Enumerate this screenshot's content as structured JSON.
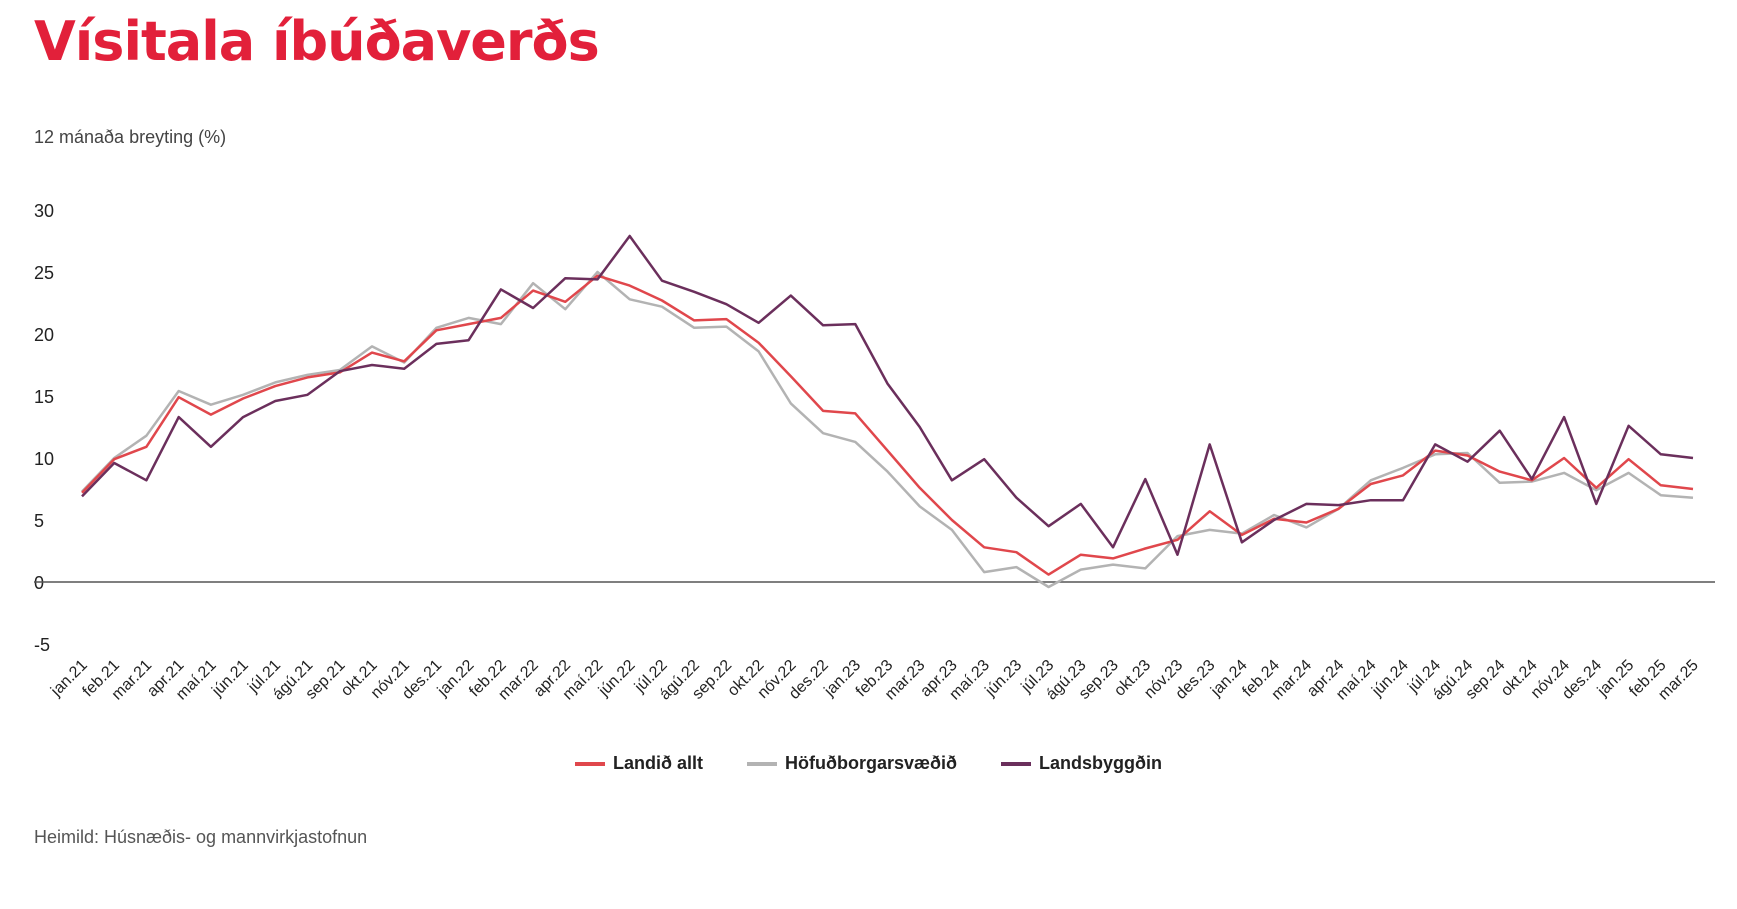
{
  "title": "Vísitala íbúðaverðs",
  "source": "Heimild: Húsnæðis- og mannvirkjastofnun",
  "chart_data": {
    "type": "line",
    "title": "Vísitala íbúðaverðs",
    "ylabel": "12 mánaða breyting (%)",
    "xlabel": "",
    "ylim": [
      -5,
      30
    ],
    "yticks": [
      30,
      25,
      20,
      15,
      10,
      5,
      0,
      -5
    ],
    "grid": false,
    "legend_position": "bottom",
    "categories": [
      "jan.21",
      "feb.21",
      "mar.21",
      "apr.21",
      "maí.21",
      "jún.21",
      "júl.21",
      "ágú.21",
      "sep.21",
      "okt.21",
      "nóv.21",
      "des.21",
      "jan.22",
      "feb.22",
      "mar.22",
      "apr.22",
      "maí.22",
      "jún.22",
      "júl.22",
      "ágú.22",
      "sep.22",
      "okt.22",
      "nóv.22",
      "des.22",
      "jan.23",
      "feb.23",
      "mar.23",
      "apr.23",
      "maí.23",
      "jún.23",
      "júl.23",
      "ágú.23",
      "sep.23",
      "okt.23",
      "nóv.23",
      "des.23",
      "jan.24",
      "feb.24",
      "mar.24",
      "apr.24",
      "maí.24",
      "jún.24",
      "júl.24",
      "ágú.24",
      "sep.24",
      "okt.24",
      "nóv.24",
      "des.24",
      "jan.25",
      "feb.25",
      "mar.25"
    ],
    "series": [
      {
        "name": "Landið allt",
        "color": "#e0474c",
        "values": [
          7.2,
          9.9,
          10.9,
          14.9,
          13.5,
          14.8,
          15.8,
          16.5,
          16.9,
          18.5,
          17.8,
          20.3,
          20.8,
          21.3,
          23.5,
          22.6,
          24.7,
          23.9,
          22.7,
          21.1,
          21.2,
          19.3,
          16.6,
          13.8,
          13.6,
          10.6,
          7.6,
          5.0,
          2.8,
          2.4,
          0.6,
          2.2,
          1.9,
          2.7,
          3.4,
          5.7,
          3.8,
          5.1,
          4.8,
          5.9,
          7.9,
          8.6,
          10.6,
          10.2,
          8.9,
          8.2,
          10.0,
          7.6,
          9.9,
          7.8,
          7.5
        ]
      },
      {
        "name": "Höfuðborgarsvæðið",
        "color": "#b3b3b3",
        "values": [
          7.3,
          10.0,
          11.8,
          15.4,
          14.3,
          15.1,
          16.1,
          16.7,
          17.1,
          19.0,
          17.7,
          20.5,
          21.3,
          20.8,
          24.1,
          22.0,
          25.0,
          22.8,
          22.2,
          20.5,
          20.6,
          18.6,
          14.4,
          12.0,
          11.3,
          8.9,
          6.1,
          4.2,
          0.8,
          1.2,
          -0.4,
          1.0,
          1.4,
          1.1,
          3.7,
          4.2,
          3.9,
          5.4,
          4.4,
          5.9,
          8.2,
          9.2,
          10.3,
          10.4,
          8.0,
          8.1,
          8.8,
          7.4,
          8.8,
          7.0,
          6.8
        ]
      },
      {
        "name": "Landsbyggðin",
        "color": "#6b2f5c",
        "values": [
          6.9,
          9.6,
          8.2,
          13.3,
          10.9,
          13.3,
          14.6,
          15.1,
          17.0,
          17.5,
          17.2,
          19.2,
          19.5,
          23.6,
          22.1,
          24.5,
          24.4,
          27.9,
          24.3,
          23.4,
          22.4,
          20.9,
          23.1,
          20.7,
          20.8,
          16.0,
          12.5,
          8.2,
          9.9,
          6.8,
          4.5,
          6.3,
          2.8,
          8.3,
          2.2,
          11.1,
          3.2,
          5.0,
          6.3,
          6.2,
          6.6,
          6.6,
          11.1,
          9.7,
          12.2,
          8.3,
          13.3,
          6.3,
          12.6,
          10.3,
          10.0
        ]
      }
    ]
  }
}
